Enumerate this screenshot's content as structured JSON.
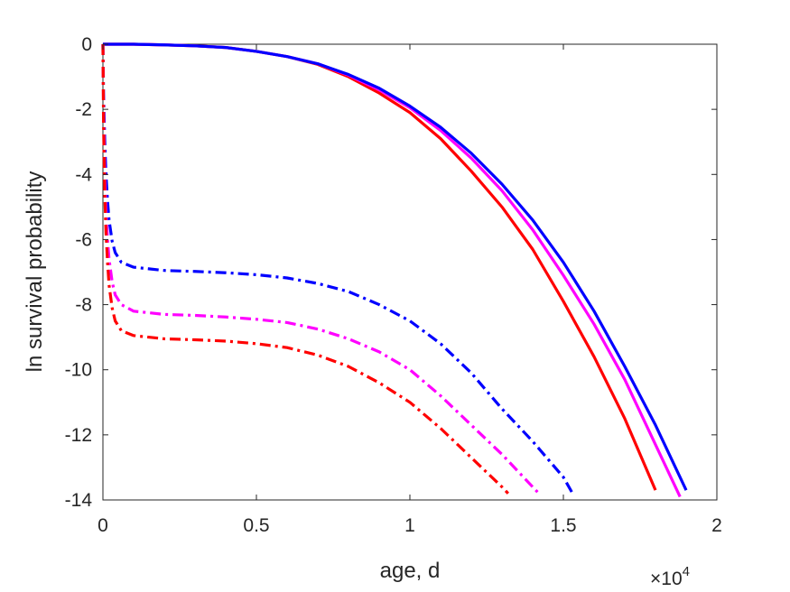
{
  "chart_data": {
    "type": "line",
    "title": "",
    "xlabel": "age, d",
    "ylabel": "ln survival probability",
    "x_exponent_label": "×10",
    "x_exponent_power": "4",
    "x_scale": 10000,
    "xlim": [
      0,
      20000
    ],
    "ylim": [
      -14,
      0
    ],
    "grid": false,
    "legend": "none",
    "x_ticks": [
      0,
      5000,
      10000,
      15000,
      20000
    ],
    "x_tick_labels": [
      "0",
      "0.5",
      "1",
      "1.5",
      "2"
    ],
    "y_ticks": [
      0,
      -2,
      -4,
      -6,
      -8,
      -10,
      -12,
      -14
    ],
    "y_tick_labels": [
      "0",
      "-2",
      "-4",
      "-6",
      "-8",
      "-10",
      "-12",
      "-14"
    ],
    "series": [
      {
        "color": "#ff0000",
        "style": "solid",
        "x": [
          0,
          1000,
          2000,
          3000,
          4000,
          5000,
          6000,
          7000,
          8000,
          9000,
          10000,
          11000,
          12000,
          13000,
          14000,
          15000,
          16000,
          17000,
          18000
        ],
        "y": [
          0,
          0,
          -0.02,
          -0.05,
          -0.1,
          -0.22,
          -0.38,
          -0.62,
          -1.0,
          -1.5,
          -2.1,
          -2.9,
          -3.9,
          -5.0,
          -6.3,
          -7.9,
          -9.6,
          -11.5,
          -13.7
        ]
      },
      {
        "color": "#ff00ff",
        "style": "solid",
        "x": [
          0,
          1000,
          2000,
          3000,
          4000,
          5000,
          6000,
          7000,
          8000,
          9000,
          10000,
          11000,
          12000,
          13000,
          14000,
          15000,
          16000,
          17000,
          18000,
          18800
        ],
        "y": [
          0,
          0,
          -0.02,
          -0.05,
          -0.1,
          -0.22,
          -0.38,
          -0.6,
          -0.95,
          -1.4,
          -1.95,
          -2.65,
          -3.5,
          -4.5,
          -5.7,
          -7.1,
          -8.6,
          -10.3,
          -12.3,
          -13.9
        ]
      },
      {
        "color": "#0000ff",
        "style": "solid",
        "x": [
          0,
          1000,
          2000,
          3000,
          4000,
          5000,
          6000,
          7000,
          8000,
          9000,
          10000,
          11000,
          12000,
          13000,
          14000,
          15000,
          16000,
          17000,
          18000,
          19000
        ],
        "y": [
          0,
          0,
          -0.02,
          -0.05,
          -0.1,
          -0.22,
          -0.38,
          -0.6,
          -0.93,
          -1.35,
          -1.9,
          -2.55,
          -3.35,
          -4.3,
          -5.4,
          -6.7,
          -8.2,
          -9.9,
          -11.7,
          -13.7
        ]
      },
      {
        "color": "#0000ff",
        "style": "dashdot",
        "x": [
          0,
          20,
          60,
          100,
          150,
          200,
          300,
          400,
          600,
          1000,
          2000,
          3000,
          4000,
          5000,
          6000,
          7000,
          8000,
          9000,
          10000,
          11000,
          12000,
          13000,
          14000,
          15000,
          15300
        ],
        "y": [
          0,
          -1.5,
          -3.0,
          -4.0,
          -4.8,
          -5.4,
          -6.05,
          -6.4,
          -6.7,
          -6.85,
          -6.95,
          -6.98,
          -7.02,
          -7.08,
          -7.18,
          -7.35,
          -7.6,
          -8.0,
          -8.5,
          -9.2,
          -10.1,
          -11.2,
          -12.2,
          -13.3,
          -13.8
        ]
      },
      {
        "color": "#ff00ff",
        "style": "dashdot",
        "x": [
          0,
          20,
          60,
          100,
          150,
          200,
          300,
          400,
          600,
          1000,
          2000,
          3000,
          4000,
          5000,
          6000,
          7000,
          8000,
          9000,
          10000,
          11000,
          12000,
          13000,
          14000,
          14200
        ],
        "y": [
          0,
          -2.0,
          -4.0,
          -5.2,
          -6.0,
          -6.6,
          -7.3,
          -7.7,
          -8.0,
          -8.2,
          -8.3,
          -8.33,
          -8.38,
          -8.45,
          -8.55,
          -8.75,
          -9.05,
          -9.45,
          -10.0,
          -10.8,
          -11.7,
          -12.6,
          -13.6,
          -13.8
        ]
      },
      {
        "color": "#ff0000",
        "style": "dashdot",
        "x": [
          0,
          20,
          60,
          100,
          150,
          200,
          300,
          400,
          600,
          1000,
          2000,
          3000,
          4000,
          5000,
          6000,
          7000,
          8000,
          9000,
          10000,
          11000,
          12000,
          13000,
          13200
        ],
        "y": [
          0,
          -2.5,
          -4.6,
          -5.8,
          -6.7,
          -7.4,
          -8.1,
          -8.5,
          -8.8,
          -8.95,
          -9.05,
          -9.08,
          -9.12,
          -9.2,
          -9.32,
          -9.55,
          -9.9,
          -10.4,
          -11.0,
          -11.8,
          -12.7,
          -13.6,
          -13.8
        ]
      }
    ]
  }
}
